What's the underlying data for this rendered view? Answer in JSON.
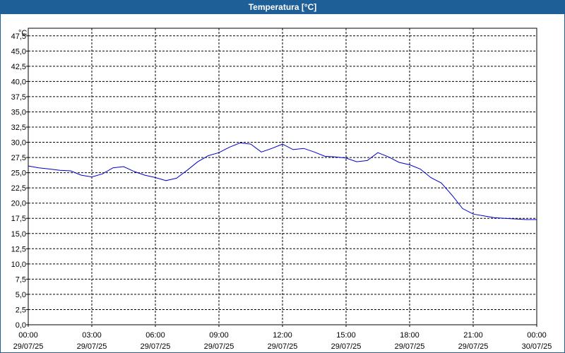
{
  "window": {
    "title": "Temperatura [°C]"
  },
  "chart_data": {
    "type": "line",
    "title": "Temperatura [°C]",
    "ylabel": "°C",
    "xlabel": "",
    "ylim": [
      0,
      48.75
    ],
    "yticks": [
      "0,0",
      "2,5",
      "5,0",
      "7,5",
      "10,0",
      "12,5",
      "15,0",
      "17,5",
      "20,0",
      "22,5",
      "25,0",
      "27,5",
      "30,0",
      "32,5",
      "35,0",
      "37,5",
      "40,0",
      "42,5",
      "45,0",
      "47,5"
    ],
    "xticks": [
      {
        "time": "00:00",
        "date": "29/07/25"
      },
      {
        "time": "03:00",
        "date": "29/07/25"
      },
      {
        "time": "06:00",
        "date": "29/07/25"
      },
      {
        "time": "09:00",
        "date": "29/07/25"
      },
      {
        "time": "12:00",
        "date": "29/07/25"
      },
      {
        "time": "15:00",
        "date": "29/07/25"
      },
      {
        "time": "18:00",
        "date": "29/07/25"
      },
      {
        "time": "21:00",
        "date": "29/07/25"
      },
      {
        "time": "00:00",
        "date": "30/07/25"
      }
    ],
    "grid": true,
    "line_color": "#0000cc",
    "series": [
      {
        "x": [
          "29/07/25 00:00",
          "29/07/25 00:30",
          "29/07/25 01:00",
          "29/07/25 01:30",
          "29/07/25 02:00",
          "29/07/25 02:30",
          "29/07/25 03:00",
          "29/07/25 03:30",
          "29/07/25 04:00",
          "29/07/25 04:30",
          "29/07/25 05:00",
          "29/07/25 05:30",
          "29/07/25 06:00",
          "29/07/25 06:30",
          "29/07/25 07:00",
          "29/07/25 07:30",
          "29/07/25 08:00",
          "29/07/25 08:30",
          "29/07/25 09:00",
          "29/07/25 09:30",
          "29/07/25 10:00",
          "29/07/25 10:30",
          "29/07/25 11:00",
          "29/07/25 11:30",
          "29/07/25 12:00",
          "29/07/25 12:30",
          "29/07/25 13:00",
          "29/07/25 13:30",
          "29/07/25 14:00",
          "29/07/25 14:30",
          "29/07/25 15:00",
          "29/07/25 15:30",
          "29/07/25 16:00",
          "29/07/25 16:30",
          "29/07/25 17:00",
          "29/07/25 17:30",
          "29/07/25 18:00",
          "29/07/25 18:30",
          "29/07/25 19:00",
          "29/07/25 19:30",
          "29/07/25 20:00",
          "29/07/25 20:30",
          "29/07/25 21:00",
          "29/07/25 21:30",
          "29/07/25 22:00",
          "29/07/25 22:30",
          "29/07/25 23:00",
          "29/07/25 23:30",
          "30/07/25 00:00"
        ],
        "values": [
          26.1,
          25.8,
          25.6,
          25.4,
          25.3,
          24.6,
          24.3,
          24.8,
          25.8,
          26.0,
          25.2,
          24.6,
          24.2,
          23.7,
          24.1,
          25.4,
          26.8,
          27.8,
          28.3,
          29.2,
          29.9,
          29.7,
          28.4,
          29.0,
          29.7,
          28.8,
          29.0,
          28.4,
          27.7,
          27.6,
          27.4,
          26.8,
          27.0,
          28.3,
          27.6,
          26.7,
          26.3,
          25.6,
          24.2,
          23.3,
          21.3,
          19.1,
          18.2,
          17.9,
          17.6,
          17.5,
          17.4,
          17.3,
          17.3
        ]
      }
    ]
  }
}
